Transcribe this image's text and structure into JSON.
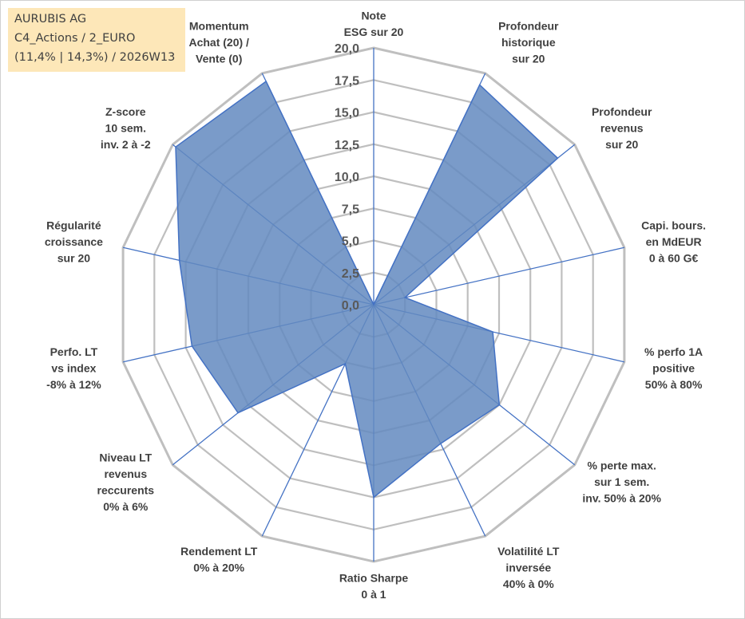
{
  "info": {
    "company": "AURUBIS AG",
    "category": "C4_Actions / 2_EURO",
    "stats": "(11,4% | 14,3%) / 2026W13"
  },
  "chart_data": {
    "type": "radar",
    "title": "",
    "rmin": 0,
    "rmax": 20,
    "ticks": [
      "0,0",
      "2,5",
      "5,0",
      "7,5",
      "10,0",
      "12,5",
      "15,0",
      "17,5",
      "20,0"
    ],
    "tick_values": [
      0,
      2.5,
      5,
      7.5,
      10,
      12.5,
      15,
      17.5,
      20
    ],
    "axes": [
      {
        "label": [
          "Note",
          "ESG sur 20"
        ],
        "value": 0
      },
      {
        "label": [
          "Profondeur",
          "historique",
          "sur 20"
        ],
        "value": 19
      },
      {
        "label": [
          "Profondeur",
          "revenus",
          "sur 20"
        ],
        "value": 18.3
      },
      {
        "label": [
          "Capi. bours.",
          "en MdEUR",
          "0 à 60 G€"
        ],
        "value": 2.5
      },
      {
        "label": [
          "% perfo 1A",
          "positive",
          "50% à 80%"
        ],
        "value": 9.5
      },
      {
        "label": [
          "% perte max.",
          "sur 1 sem.",
          "inv. 50% à 20%"
        ],
        "value": 12.5
      },
      {
        "label": [
          "Volatilité LT",
          "inversée",
          "40% à 0%"
        ],
        "value": 12
      },
      {
        "label": [
          "Ratio Sharpe",
          "0 à 1"
        ],
        "value": 15
      },
      {
        "label": [
          "Rendement LT",
          "0% à 20%"
        ],
        "value": 5.1
      },
      {
        "label": [
          "Niveau LT",
          "revenus",
          "reccurents",
          "0% à 6%"
        ],
        "value": 13.5
      },
      {
        "label": [
          "Perfo. LT",
          "vs index",
          "-8% à 12%"
        ],
        "value": 14.5
      },
      {
        "label": [
          "Régularité",
          "croissance",
          "sur 20"
        ],
        "value": 15.5
      },
      {
        "label": [
          "Z-score",
          "10 sem.",
          "inv. 2 à -2"
        ],
        "value": 19.7
      },
      {
        "label": [
          "Momentum",
          "Achat (20) /",
          "Vente (0)"
        ],
        "value": 19.3
      }
    ],
    "colors": {
      "fill": "#6389bf",
      "stroke": "#4472c4",
      "grid": "#bfbfbf",
      "spoke": "#4472c4"
    }
  }
}
